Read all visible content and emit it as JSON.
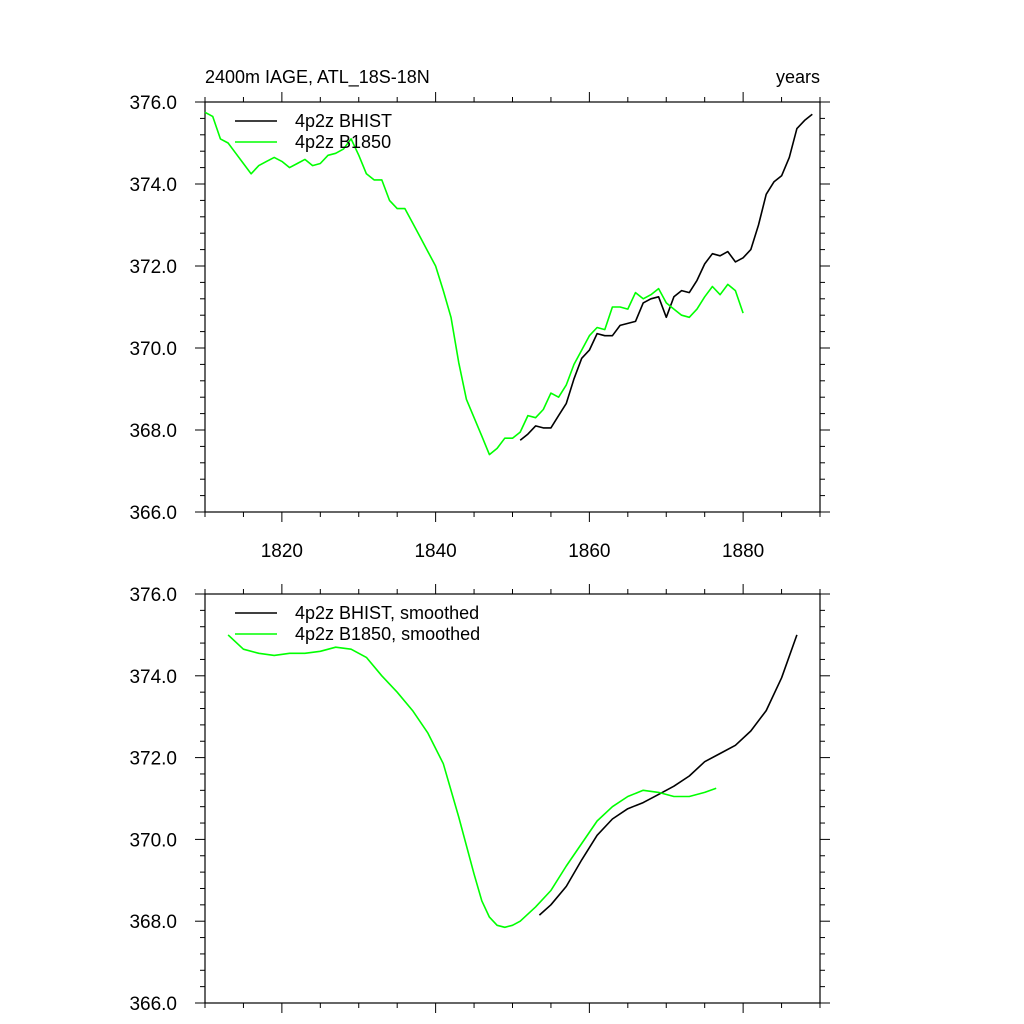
{
  "chart_data": [
    {
      "type": "line",
      "title_left": "2400m IAGE, ATL_18S-18N",
      "title_right": "years",
      "xlim": [
        1810,
        1890
      ],
      "ylim": [
        366.0,
        376.0
      ],
      "xticks": [
        1820,
        1840,
        1860,
        1880
      ],
      "yticks": [
        "366.0",
        "368.0",
        "370.0",
        "372.0",
        "374.0",
        "376.0"
      ],
      "legend_position": "top-left",
      "series": [
        {
          "name": "4p2z BHIST",
          "color": "#000000",
          "x": [
            1851,
            1852,
            1853,
            1854,
            1855,
            1856,
            1857,
            1858,
            1859,
            1860,
            1861,
            1862,
            1863,
            1864,
            1865,
            1866,
            1867,
            1868,
            1869,
            1870,
            1871,
            1872,
            1873,
            1874,
            1875,
            1876,
            1877,
            1878,
            1879,
            1880,
            1881,
            1882,
            1883,
            1884,
            1885,
            1886,
            1887,
            1888,
            1889
          ],
          "y": [
            367.75,
            367.9,
            368.1,
            368.05,
            368.05,
            368.35,
            368.65,
            369.25,
            369.75,
            369.95,
            370.35,
            370.3,
            370.3,
            370.55,
            370.6,
            370.65,
            371.1,
            371.2,
            371.25,
            370.75,
            371.25,
            371.4,
            371.35,
            371.65,
            372.05,
            372.3,
            372.25,
            372.35,
            372.1,
            372.2,
            372.4,
            373.0,
            373.75,
            374.05,
            374.2,
            374.65,
            375.35,
            375.55,
            375.7
          ]
        },
        {
          "name": "4p2z B1850",
          "color": "#00ff00",
          "x": [
            1810,
            1811,
            1812,
            1813,
            1814,
            1815,
            1816,
            1817,
            1818,
            1819,
            1820,
            1821,
            1822,
            1823,
            1824,
            1825,
            1826,
            1827,
            1828,
            1829,
            1830,
            1831,
            1832,
            1833,
            1834,
            1835,
            1836,
            1837,
            1838,
            1839,
            1840,
            1841,
            1842,
            1843,
            1844,
            1845,
            1846,
            1847,
            1848,
            1849,
            1850,
            1851,
            1852,
            1853,
            1854,
            1855,
            1856,
            1857,
            1858,
            1859,
            1860,
            1861,
            1862,
            1863,
            1864,
            1865,
            1866,
            1867,
            1868,
            1869,
            1870,
            1871,
            1872,
            1873,
            1874,
            1875,
            1876,
            1877,
            1878,
            1879,
            1880
          ],
          "y": [
            375.75,
            375.65,
            375.1,
            375.0,
            374.75,
            374.5,
            374.25,
            374.45,
            374.55,
            374.65,
            374.55,
            374.4,
            374.5,
            374.6,
            374.45,
            374.5,
            374.7,
            374.75,
            374.85,
            375.1,
            374.7,
            374.25,
            374.1,
            374.1,
            373.6,
            373.4,
            373.4,
            373.05,
            372.7,
            372.35,
            372.0,
            371.4,
            370.75,
            369.65,
            368.75,
            368.3,
            367.85,
            367.4,
            367.55,
            367.8,
            367.8,
            367.95,
            368.35,
            368.3,
            368.5,
            368.9,
            368.8,
            369.1,
            369.6,
            369.95,
            370.3,
            370.5,
            370.45,
            371.0,
            371.0,
            370.95,
            371.35,
            371.2,
            371.3,
            371.45,
            371.1,
            370.95,
            370.8,
            370.75,
            370.95,
            371.25,
            371.5,
            371.3,
            371.55,
            371.4,
            370.85
          ]
        }
      ]
    },
    {
      "type": "line",
      "title_left": "",
      "title_right": "",
      "xlim": [
        1810,
        1890
      ],
      "ylim": [
        366.0,
        376.0
      ],
      "xticks": [
        1820,
        1840,
        1860,
        1880
      ],
      "yticks": [
        "366.0",
        "368.0",
        "370.0",
        "372.0",
        "374.0",
        "376.0"
      ],
      "legend_position": "top-left",
      "series": [
        {
          "name": "4p2z BHIST, smoothed",
          "color": "#000000",
          "x": [
            1853.5,
            1855,
            1857,
            1859,
            1861,
            1863,
            1865,
            1867,
            1869,
            1871,
            1873,
            1875,
            1877,
            1879,
            1881,
            1883,
            1885,
            1887
          ],
          "y": [
            368.15,
            368.4,
            368.85,
            369.5,
            370.1,
            370.5,
            370.75,
            370.9,
            371.1,
            371.3,
            371.55,
            371.9,
            372.1,
            372.3,
            372.65,
            373.15,
            373.95,
            375.0
          ]
        },
        {
          "name": "4p2z B1850, smoothed",
          "color": "#00ff00",
          "x": [
            1813,
            1815,
            1817,
            1819,
            1821,
            1823,
            1825,
            1827,
            1829,
            1831,
            1833,
            1835,
            1837,
            1839,
            1841,
            1843,
            1845,
            1846,
            1847,
            1848,
            1849,
            1850,
            1851,
            1853,
            1855,
            1857,
            1859,
            1861,
            1863,
            1865,
            1867,
            1869,
            1871,
            1873,
            1875,
            1876.5
          ],
          "y": [
            375.0,
            374.65,
            374.55,
            374.5,
            374.55,
            374.55,
            374.6,
            374.7,
            374.65,
            374.45,
            374.0,
            373.6,
            373.15,
            372.6,
            371.85,
            370.55,
            369.15,
            368.5,
            368.1,
            367.9,
            367.85,
            367.9,
            368.0,
            368.35,
            368.75,
            369.35,
            369.9,
            370.45,
            370.8,
            371.05,
            371.2,
            371.15,
            371.05,
            371.05,
            371.15,
            371.25
          ]
        }
      ]
    }
  ]
}
